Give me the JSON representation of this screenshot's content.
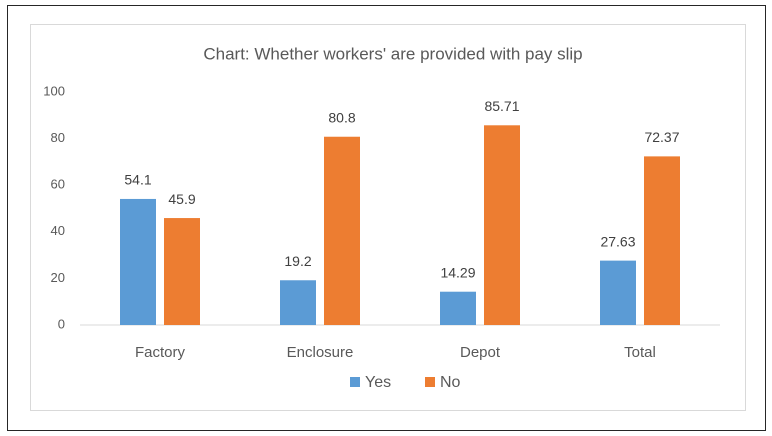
{
  "chart_data": {
    "type": "bar",
    "title": "Chart: Whether workers' are provided with pay slip",
    "categories": [
      "Factory",
      "Enclosure",
      "Depot",
      "Total"
    ],
    "series": [
      {
        "name": "Yes",
        "color": "#5b9bd5",
        "values": [
          54.1,
          19.2,
          14.29,
          27.63
        ]
      },
      {
        "name": "No",
        "color": "#ed7d31",
        "values": [
          45.9,
          80.8,
          85.71,
          72.37
        ]
      }
    ],
    "ylim": [
      0,
      100
    ],
    "yticks": [
      0,
      20,
      40,
      60,
      80,
      100
    ],
    "grid": false,
    "legend": "bottom"
  }
}
